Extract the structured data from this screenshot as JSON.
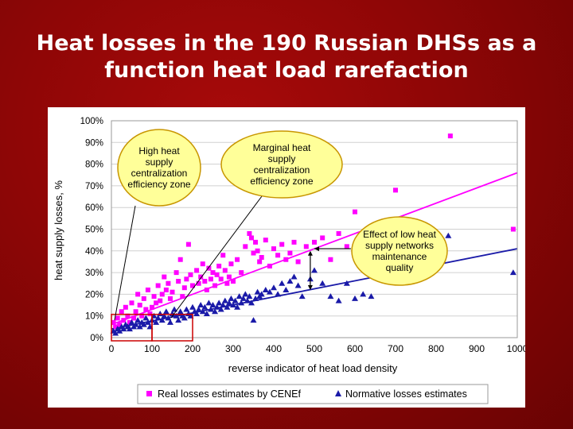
{
  "slide": {
    "title_line1": "Heat losses in the 190 Russian DHSs as a",
    "title_line2": "function heat load rarefaction"
  },
  "colors": {
    "background": "#8e0606",
    "real_series": "#ff00ff",
    "normative_series": "#1a1aa8",
    "callout_fill": "#ffff99",
    "callout_border": "#c89600",
    "box_outline": "#cc0000"
  },
  "chart_data": {
    "type": "scatter",
    "xlabel": "reverse indicator of heat load density",
    "ylabel": "heat supply losses, %",
    "xlim": [
      0,
      1000
    ],
    "ylim": [
      0,
      100
    ],
    "x_ticks": [
      0,
      100,
      200,
      300,
      400,
      500,
      600,
      700,
      800,
      900,
      1000
    ],
    "y_ticks": [
      0,
      10,
      20,
      30,
      40,
      50,
      60,
      70,
      80,
      90,
      100
    ],
    "x_tick_labels": [
      "0",
      "100",
      "200",
      "300",
      "400",
      "500",
      "600",
      "700",
      "800",
      "900",
      "1000"
    ],
    "y_tick_labels": [
      "0%",
      "10%",
      "20%",
      "30%",
      "40%",
      "50%",
      "60%",
      "70%",
      "80%",
      "90%",
      "100%"
    ],
    "grid": true,
    "legend_position": "bottom",
    "series": [
      {
        "name": "Real losses estimates by CENEf",
        "marker": "square",
        "color": "#ff00ff",
        "points": [
          [
            5,
            7
          ],
          [
            10,
            5
          ],
          [
            15,
            9
          ],
          [
            20,
            6
          ],
          [
            25,
            12
          ],
          [
            30,
            8
          ],
          [
            35,
            14
          ],
          [
            40,
            10
          ],
          [
            45,
            7
          ],
          [
            50,
            16
          ],
          [
            55,
            9
          ],
          [
            60,
            12
          ],
          [
            65,
            20
          ],
          [
            70,
            15
          ],
          [
            75,
            10
          ],
          [
            80,
            18
          ],
          [
            85,
            13
          ],
          [
            90,
            22
          ],
          [
            95,
            11
          ],
          [
            100,
            14
          ],
          [
            105,
            19
          ],
          [
            110,
            16
          ],
          [
            115,
            24
          ],
          [
            120,
            17
          ],
          [
            125,
            20
          ],
          [
            130,
            28
          ],
          [
            135,
            22
          ],
          [
            140,
            25
          ],
          [
            145,
            18
          ],
          [
            150,
            21
          ],
          [
            160,
            30
          ],
          [
            165,
            26
          ],
          [
            170,
            36
          ],
          [
            175,
            19
          ],
          [
            180,
            23
          ],
          [
            185,
            27
          ],
          [
            190,
            43
          ],
          [
            195,
            29
          ],
          [
            200,
            24
          ],
          [
            210,
            31
          ],
          [
            215,
            25
          ],
          [
            220,
            28
          ],
          [
            225,
            34
          ],
          [
            230,
            26
          ],
          [
            235,
            22
          ],
          [
            240,
            32
          ],
          [
            245,
            27
          ],
          [
            250,
            30
          ],
          [
            255,
            24
          ],
          [
            260,
            29
          ],
          [
            265,
            33
          ],
          [
            270,
            27
          ],
          [
            275,
            38
          ],
          [
            280,
            31
          ],
          [
            285,
            25
          ],
          [
            290,
            28
          ],
          [
            295,
            34
          ],
          [
            300,
            26
          ],
          [
            310,
            36
          ],
          [
            320,
            30
          ],
          [
            330,
            42
          ],
          [
            340,
            48
          ],
          [
            345,
            46
          ],
          [
            350,
            39
          ],
          [
            355,
            44
          ],
          [
            360,
            40
          ],
          [
            365,
            35
          ],
          [
            370,
            37
          ],
          [
            380,
            45
          ],
          [
            390,
            33
          ],
          [
            400,
            41
          ],
          [
            410,
            38
          ],
          [
            420,
            43
          ],
          [
            430,
            36
          ],
          [
            440,
            39
          ],
          [
            450,
            44
          ],
          [
            460,
            35
          ],
          [
            480,
            42
          ],
          [
            500,
            44
          ],
          [
            520,
            46
          ],
          [
            540,
            36
          ],
          [
            560,
            48
          ],
          [
            580,
            42
          ],
          [
            600,
            58
          ],
          [
            620,
            47
          ],
          [
            640,
            40
          ],
          [
            700,
            68
          ],
          [
            835,
            93
          ],
          [
            990,
            50
          ]
        ]
      },
      {
        "name": "Normative losses estimates",
        "marker": "triangle",
        "color": "#1a1aa8",
        "points": [
          [
            5,
            3
          ],
          [
            10,
            2
          ],
          [
            15,
            4
          ],
          [
            20,
            3
          ],
          [
            25,
            5
          ],
          [
            30,
            4
          ],
          [
            35,
            6
          ],
          [
            40,
            5
          ],
          [
            45,
            4
          ],
          [
            50,
            7
          ],
          [
            55,
            5
          ],
          [
            60,
            6
          ],
          [
            65,
            8
          ],
          [
            70,
            5
          ],
          [
            75,
            7
          ],
          [
            80,
            6
          ],
          [
            85,
            9
          ],
          [
            90,
            7
          ],
          [
            95,
            5
          ],
          [
            100,
            8
          ],
          [
            105,
            10
          ],
          [
            110,
            7
          ],
          [
            115,
            9
          ],
          [
            120,
            11
          ],
          [
            125,
            8
          ],
          [
            130,
            10
          ],
          [
            135,
            12
          ],
          [
            140,
            9
          ],
          [
            145,
            7
          ],
          [
            150,
            11
          ],
          [
            155,
            13
          ],
          [
            160,
            10
          ],
          [
            165,
            8
          ],
          [
            170,
            12
          ],
          [
            175,
            10
          ],
          [
            180,
            9
          ],
          [
            185,
            13
          ],
          [
            190,
            11
          ],
          [
            195,
            10
          ],
          [
            200,
            14
          ],
          [
            205,
            12
          ],
          [
            210,
            11
          ],
          [
            215,
            13
          ],
          [
            220,
            15
          ],
          [
            225,
            12
          ],
          [
            230,
            14
          ],
          [
            235,
            11
          ],
          [
            240,
            16
          ],
          [
            245,
            13
          ],
          [
            250,
            15
          ],
          [
            255,
            12
          ],
          [
            260,
            14
          ],
          [
            265,
            16
          ],
          [
            270,
            13
          ],
          [
            275,
            15
          ],
          [
            280,
            17
          ],
          [
            285,
            14
          ],
          [
            290,
            16
          ],
          [
            295,
            18
          ],
          [
            300,
            15
          ],
          [
            305,
            17
          ],
          [
            310,
            14
          ],
          [
            315,
            19
          ],
          [
            320,
            16
          ],
          [
            325,
            18
          ],
          [
            330,
            20
          ],
          [
            335,
            17
          ],
          [
            340,
            19
          ],
          [
            345,
            16
          ],
          [
            350,
            8
          ],
          [
            355,
            18
          ],
          [
            360,
            21
          ],
          [
            365,
            19
          ],
          [
            370,
            20
          ],
          [
            380,
            22
          ],
          [
            390,
            21
          ],
          [
            400,
            23
          ],
          [
            410,
            20
          ],
          [
            420,
            25
          ],
          [
            430,
            22
          ],
          [
            440,
            26
          ],
          [
            450,
            28
          ],
          [
            460,
            24
          ],
          [
            470,
            19
          ],
          [
            490,
            27
          ],
          [
            500,
            31
          ],
          [
            520,
            25
          ],
          [
            540,
            19
          ],
          [
            560,
            17
          ],
          [
            580,
            25
          ],
          [
            600,
            18
          ],
          [
            620,
            20
          ],
          [
            640,
            19
          ],
          [
            660,
            28
          ],
          [
            690,
            34
          ],
          [
            720,
            38
          ],
          [
            760,
            33
          ],
          [
            830,
            47
          ],
          [
            990,
            30
          ]
        ]
      }
    ],
    "trendlines": [
      {
        "series": "Real losses estimates by CENEf",
        "from": [
          0,
          6
        ],
        "to": [
          1000,
          76
        ]
      },
      {
        "series": "Normative losses estimates",
        "from": [
          0,
          4
        ],
        "to": [
          1000,
          41
        ]
      }
    ],
    "callouts": [
      {
        "name": "high-zone",
        "text_lines": [
          "High heat",
          "supply",
          "centralization",
          "efficiency zone"
        ]
      },
      {
        "name": "marginal-zone",
        "text_lines": [
          "Marginal heat",
          "supply",
          "centralization",
          "efficiency  zone"
        ]
      },
      {
        "name": "maintenance-effect",
        "text_lines": [
          "Effect of low heat",
          "supply networks",
          "maintenance",
          "quality"
        ]
      }
    ]
  }
}
